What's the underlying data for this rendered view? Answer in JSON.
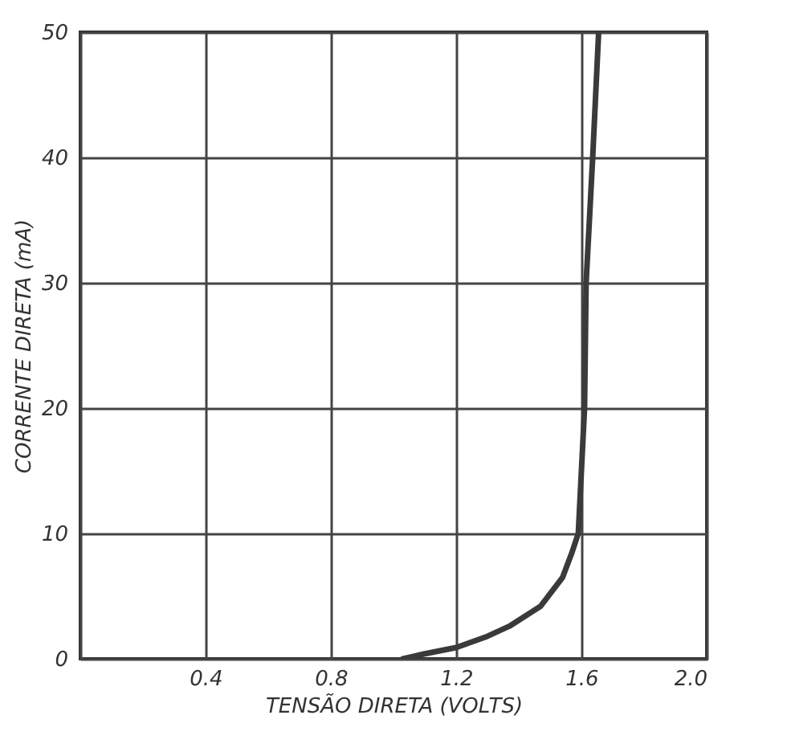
{
  "chart_data": {
    "type": "line",
    "xlabel": "TENSÃO DIRETA (VOLTS)",
    "ylabel": "CORRENTE DIRETA (mA)",
    "x": [
      1.03,
      1.1,
      1.2,
      1.3,
      1.37,
      1.47,
      1.54,
      1.57,
      1.59,
      1.6,
      1.61,
      1.615,
      1.636,
      1.655
    ],
    "series": [
      {
        "color": "#3a3a3a",
        "values": [
          0,
          0.4,
          0.9,
          1.8,
          2.6,
          4.2,
          6.5,
          8.5,
          10,
          15,
          20,
          30,
          40,
          50
        ]
      }
    ],
    "xlim": [
      0,
      2.0
    ],
    "ylim": [
      0,
      50
    ],
    "xticks": [
      {
        "value": 0,
        "label": null
      },
      {
        "value": 0.4,
        "label": "0.4"
      },
      {
        "value": 0.8,
        "label": "0.8"
      },
      {
        "value": 1.2,
        "label": "1.2"
      },
      {
        "value": 1.6,
        "label": "1.6"
      },
      {
        "value": 2.0,
        "label": "2.0"
      }
    ],
    "yticks": [
      0,
      10,
      20,
      30,
      40,
      50
    ],
    "grid": true,
    "marker": "none",
    "line_style": "solid"
  }
}
